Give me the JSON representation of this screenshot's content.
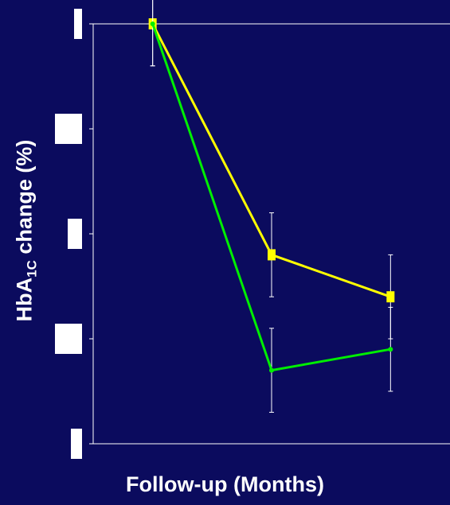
{
  "chart_data": {
    "type": "line",
    "xlabel": "Follow-up (Months)",
    "ylabel": {
      "prefix": "HbA",
      "subscript": "1C",
      "suffix": " change (%)"
    },
    "x": [
      0,
      1,
      2
    ],
    "xlim": [
      -0.5,
      2.5
    ],
    "ylim": [
      -2.0,
      0.0
    ],
    "yticks": [
      0,
      -0.5,
      -1.0,
      -1.5,
      -2.0
    ],
    "grid": false,
    "series": [
      {
        "color": "#ffff00",
        "marker": "square",
        "values": [
          0.0,
          -1.1,
          -1.3
        ],
        "errors": [
          0.2,
          0.2,
          0.2
        ]
      },
      {
        "color": "#00ee00",
        "marker": "dot",
        "values": [
          0.0,
          -1.65,
          -1.55
        ],
        "errors": [
          0.2,
          0.2,
          0.2
        ]
      }
    ]
  }
}
